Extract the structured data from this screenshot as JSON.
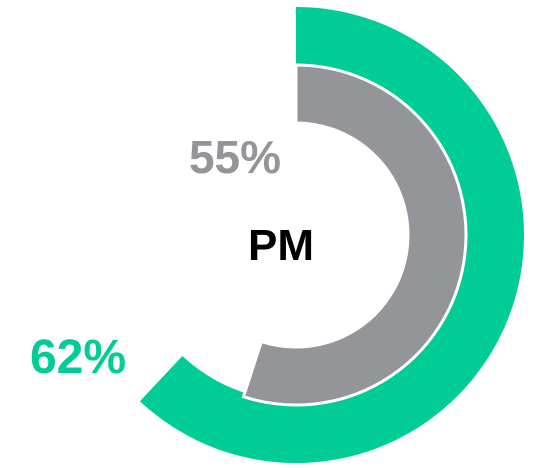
{
  "chart_data": {
    "type": "radial-bar",
    "center_label": "PM",
    "series": [
      {
        "value": 62,
        "label": "62%",
        "color": "#00cc96"
      },
      {
        "value": 55,
        "label": "55%",
        "color": "#939598"
      }
    ],
    "colors": {
      "background": "#ffffff",
      "center_text": "#000000"
    }
  }
}
